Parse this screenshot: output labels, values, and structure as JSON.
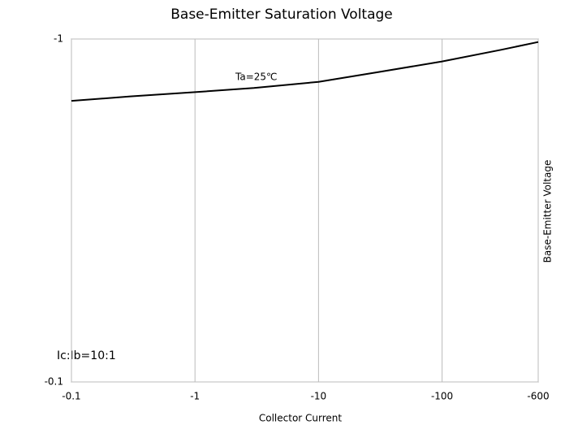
{
  "chart_data": {
    "type": "line",
    "title": "Base-Emitter Saturation Voltage",
    "x_label": "Collector Current",
    "y_label": "Base-Emitter Voltage",
    "annotations": [
      "Ta=25℃",
      "Ic:Ib=10:1"
    ],
    "x": [
      -0.1,
      -0.3,
      -1,
      -3,
      -10,
      -30,
      -100,
      -300,
      -600
    ],
    "series": [
      {
        "name": "Ta=25℃",
        "color": "#000000",
        "values": [
          -0.66,
          -0.68,
          -0.7,
          -0.72,
          -0.75,
          -0.8,
          -0.86,
          -0.93,
          -0.98
        ]
      }
    ],
    "xlim": [
      -0.1,
      -600
    ],
    "xticks": [
      -0.1,
      -1,
      -10,
      -100,
      -600
    ],
    "ylim": [
      -0.1,
      -1
    ],
    "yticks": [
      -0.1,
      -1
    ],
    "log_scale": true,
    "grid": true
  }
}
